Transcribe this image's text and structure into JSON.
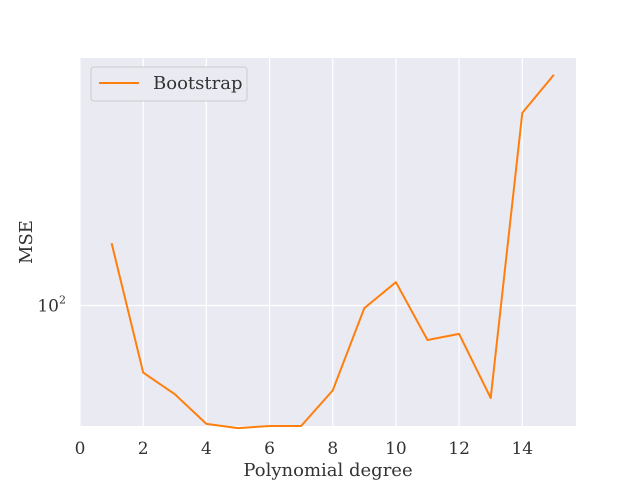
{
  "chart_data": {
    "type": "line",
    "xlabel": "Polynomial degree",
    "ylabel": "MSE",
    "xlim": [
      0,
      15.7
    ],
    "ylim": [
      64,
      250
    ],
    "y_scale": "log",
    "grid": true,
    "legend_position": "top-left",
    "x_ticks": [
      0,
      2,
      4,
      6,
      8,
      10,
      12,
      14
    ],
    "y_ticks": [
      {
        "base": "10",
        "exponent": "2",
        "value": 100
      }
    ],
    "series": [
      {
        "name": "Bootstrap",
        "color": "#ff7f0e",
        "x": [
          1,
          2,
          3,
          4,
          5,
          6,
          7,
          8,
          9,
          10,
          11,
          12,
          13,
          14,
          15
        ],
        "y": [
          126,
          78,
          72,
          64.5,
          63.5,
          64,
          64,
          73,
          99,
          109,
          88,
          90,
          71,
          204,
          235
        ]
      }
    ]
  },
  "colors": {
    "plot_background": "#eaeaf2",
    "grid": "#ffffff",
    "text": "#333333"
  }
}
